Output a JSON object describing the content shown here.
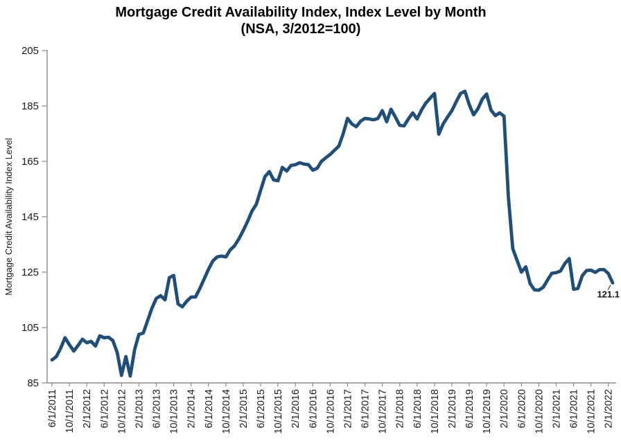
{
  "title": {
    "line1": "Mortgage Credit Availability Index, Index Level by Month",
    "line2": "(NSA, 3/2012=100)"
  },
  "chart_data": {
    "type": "line",
    "title": "Mortgage Credit Availability Index, Index Level by Month",
    "subtitle": "(NSA, 3/2012=100)",
    "xlabel": "",
    "ylabel": "Mortgage Credit Availability Index Level",
    "ylim": [
      85,
      205
    ],
    "y_tick_step": 20,
    "y_tick_labels": [
      "85",
      "105",
      "125",
      "145",
      "165",
      "185",
      "205"
    ],
    "x_tick_labels": [
      "6/1/2011",
      "10/1/2011",
      "2/1/2012",
      "6/1/2012",
      "10/1/2012",
      "2/1/2013",
      "6/1/2013",
      "10/1/2013",
      "2/1/2014",
      "6/1/2014",
      "10/1/2014",
      "2/1/2015",
      "6/1/2015",
      "10/1/2015",
      "2/1/2016",
      "6/1/2016",
      "10/1/2016",
      "2/1/2017",
      "6/1/2017",
      "10/1/2017",
      "2/1/2018",
      "6/1/2018",
      "10/1/2018",
      "2/1/2019",
      "6/1/2019",
      "10/1/2019",
      "2/1/2020",
      "6/1/2020",
      "10/1/2020",
      "2/1/2021",
      "6/1/2021",
      "10/1/2021",
      "2/1/2022"
    ],
    "x_tick_every_n_points": 4,
    "sampling": "monthly",
    "grid": false,
    "legend": false,
    "line_color": "#1F4E79",
    "axis_color": "#8C8C8C",
    "text_color": "#1a1a1a",
    "end_label": "121.1",
    "series": [
      {
        "name": "Mortgage Credit Availability Index",
        "start_month": "6/1/2011",
        "end_month": "3/1/2022",
        "values": [
          93.3,
          94.5,
          97.5,
          101.3,
          98.8,
          96.5,
          98.5,
          100.8,
          99.5,
          100.0,
          98.3,
          102.0,
          101.3,
          101.5,
          100.3,
          96.0,
          87.7,
          94.5,
          87.5,
          97.0,
          102.5,
          103.0,
          107.5,
          112.0,
          115.5,
          116.5,
          115.0,
          123.0,
          123.8,
          113.5,
          112.5,
          114.5,
          116.0,
          116.0,
          119.0,
          122.5,
          126.0,
          129.0,
          130.5,
          130.8,
          130.5,
          133.0,
          134.5,
          137.0,
          140.0,
          143.3,
          147.0,
          149.5,
          154.5,
          159.5,
          161.3,
          158.3,
          158.0,
          162.8,
          161.5,
          163.5,
          163.8,
          164.5,
          164.0,
          163.8,
          161.8,
          162.5,
          165.0,
          166.3,
          167.5,
          169.0,
          170.5,
          175.0,
          180.5,
          178.5,
          177.5,
          179.5,
          180.5,
          180.3,
          180.0,
          180.5,
          183.3,
          179.3,
          183.8,
          181.0,
          178.0,
          177.8,
          180.3,
          182.5,
          180.3,
          183.5,
          186.0,
          187.8,
          189.5,
          174.8,
          178.5,
          181.0,
          183.3,
          186.5,
          189.5,
          190.3,
          185.5,
          181.8,
          184.0,
          187.5,
          189.3,
          183.5,
          181.5,
          182.5,
          181.3,
          152.1,
          133.5,
          129.3,
          125.0,
          126.9,
          120.9,
          118.6,
          118.5,
          119.5,
          122.1,
          124.6,
          124.8,
          125.4,
          128.1,
          129.9,
          118.8,
          119.1,
          123.7,
          125.6,
          125.7,
          124.9,
          125.9,
          125.9,
          124.5,
          121.1
        ]
      }
    ]
  }
}
